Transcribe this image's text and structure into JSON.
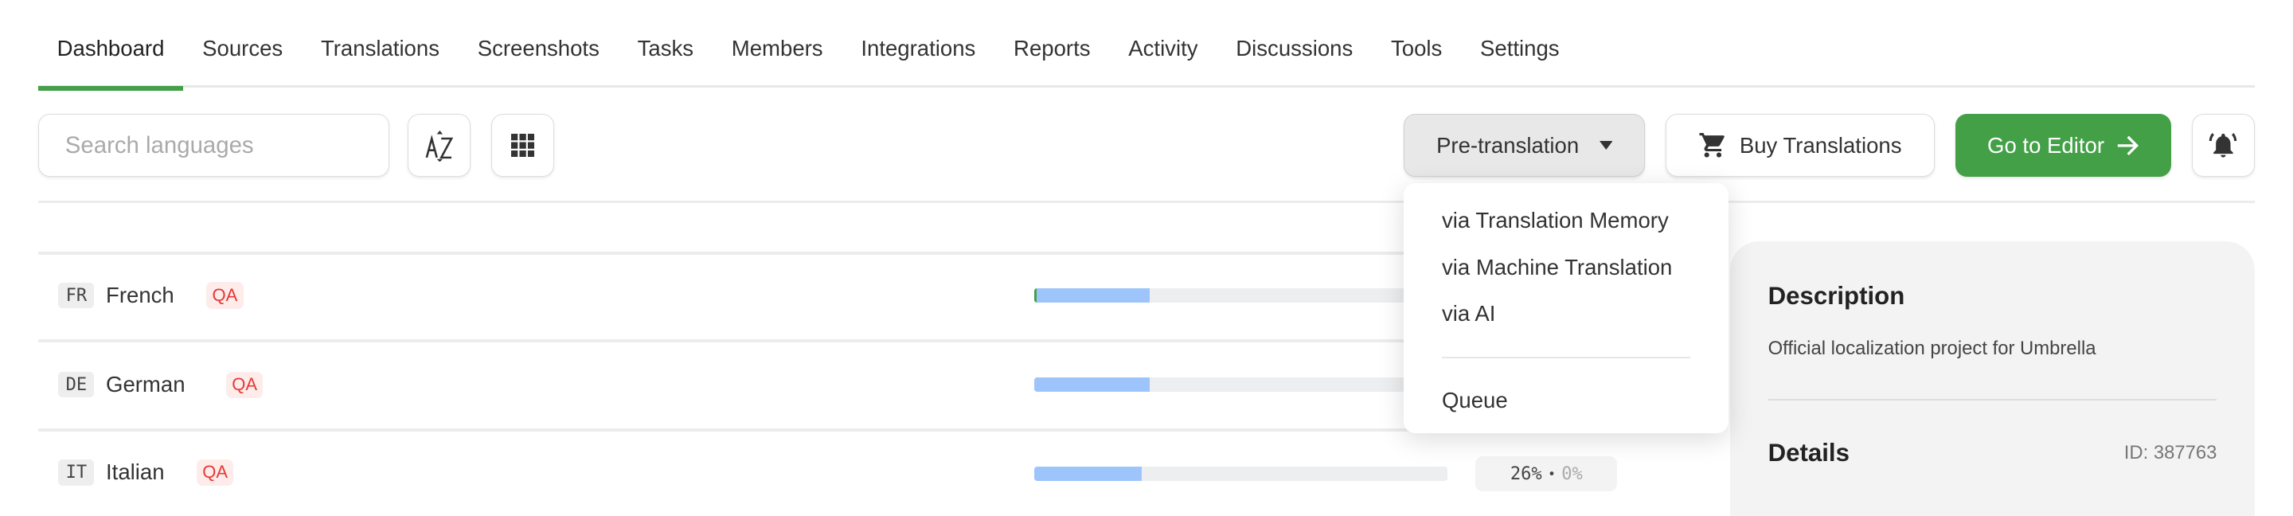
{
  "tabs": [
    "Dashboard",
    "Sources",
    "Translations",
    "Screenshots",
    "Tasks",
    "Members",
    "Integrations",
    "Reports",
    "Activity",
    "Discussions",
    "Tools",
    "Settings"
  ],
  "active_tab": "Dashboard",
  "search": {
    "placeholder": "Search languages"
  },
  "toolbar": {
    "sort_icon": "sort-az-icon",
    "grid_icon": "grid-view-icon",
    "pretranslation_label": "Pre-translation",
    "buy_label": "Buy Translations",
    "editor_label": "Go to Editor",
    "notify_icon": "bell-ringing-icon"
  },
  "pretranslation_menu": {
    "items": [
      "via Translation Memory",
      "via Machine Translation",
      "via AI"
    ],
    "queue": "Queue"
  },
  "languages": [
    {
      "code": "FR",
      "name": "French",
      "badge": "QA",
      "translated": 28,
      "approved": 1
    },
    {
      "code": "DE",
      "name": "German",
      "badge": "QA",
      "translated": 28,
      "approved": 0
    },
    {
      "code": "IT",
      "name": "Italian",
      "badge": "QA",
      "translated": 26,
      "approved": 0,
      "translated_label": "26%",
      "approved_label": "0%",
      "separator": "•"
    }
  ],
  "panel": {
    "description_title": "Description",
    "description": "Official localization project for Umbrella",
    "details_title": "Details",
    "id": "ID: 387763"
  },
  "colors": {
    "accent": "#43a047",
    "progress": "#9ec5fb",
    "qa": "#e53935"
  }
}
